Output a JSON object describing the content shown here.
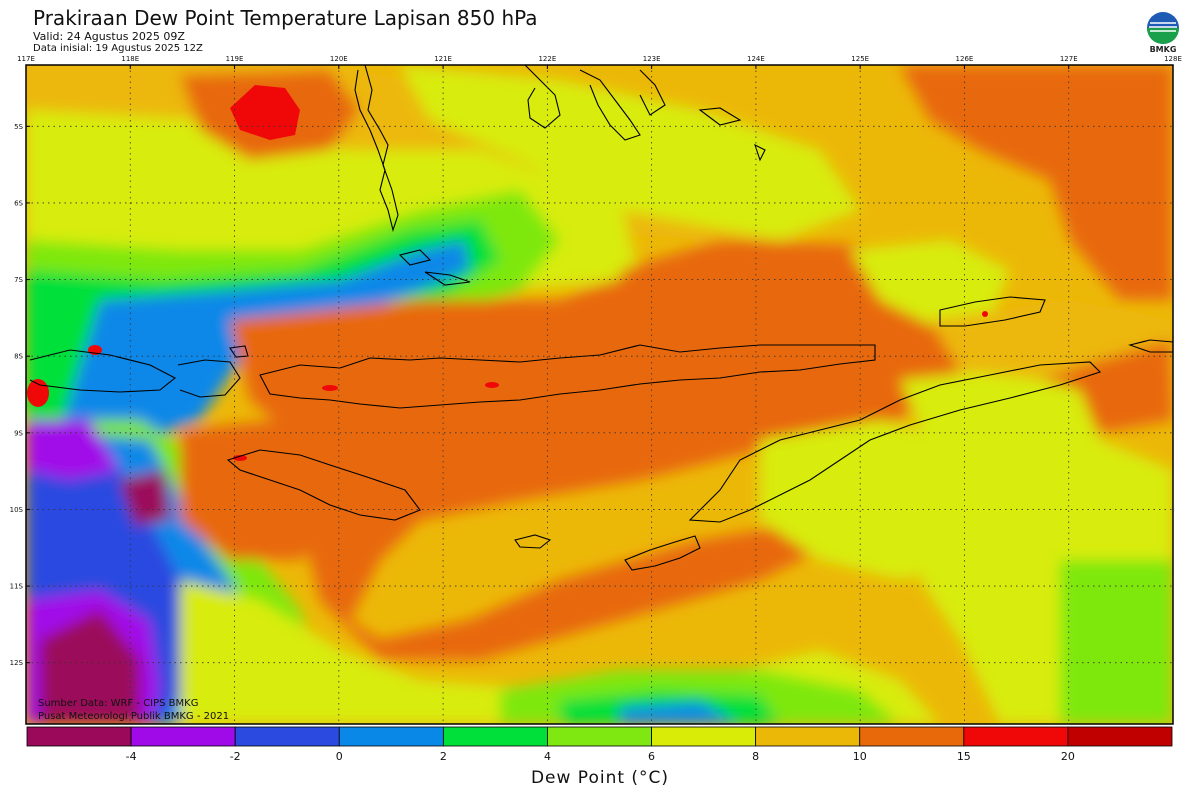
{
  "header": {
    "title": "Prakiraan Dew Point Temperature Lapisan 850 hPa",
    "valid": "Valid: 24 Agustus 2025 09Z",
    "initial": "Data inisial: 19 Agustus 2025 12Z"
  },
  "logo": {
    "icon": "bmkg-logo-icon",
    "text": "BMKG"
  },
  "map": {
    "lon_labels": [
      "117E",
      "118E",
      "119E",
      "120E",
      "121E",
      "122E",
      "123E",
      "124E",
      "125E",
      "126E",
      "127E",
      "128E"
    ],
    "lat_labels": [
      "5S",
      "6S",
      "7S",
      "8S",
      "9S",
      "10S",
      "11S",
      "12S"
    ],
    "lon_range": [
      117,
      128
    ],
    "lat_range": [
      -4.2,
      -12.8
    ],
    "grid": "dotted"
  },
  "footer": {
    "source": "Sumber Data: WRF - CIPS BMKG",
    "publisher": "Pusat Meteorologi Publik BMKG - 2021"
  },
  "colorbar": {
    "title": "Dew Point (°C)",
    "bins": [
      {
        "color": "#9b0a5a"
      },
      {
        "color": "#a10ae8",
        "label": "-4"
      },
      {
        "color": "#2a4ae0",
        "label": "-2"
      },
      {
        "color": "#0a88e8",
        "label": "0"
      },
      {
        "color": "#00e03a",
        "label": "2"
      },
      {
        "color": "#7ee810",
        "label": "4"
      },
      {
        "color": "#d8ec08",
        "label": "6"
      },
      {
        "color": "#ecb808",
        "label": "8"
      },
      {
        "color": "#e8690a",
        "label": "10"
      },
      {
        "color": "#f00808",
        "label": "15"
      },
      {
        "color": "#c00000",
        "label": "20"
      }
    ]
  }
}
